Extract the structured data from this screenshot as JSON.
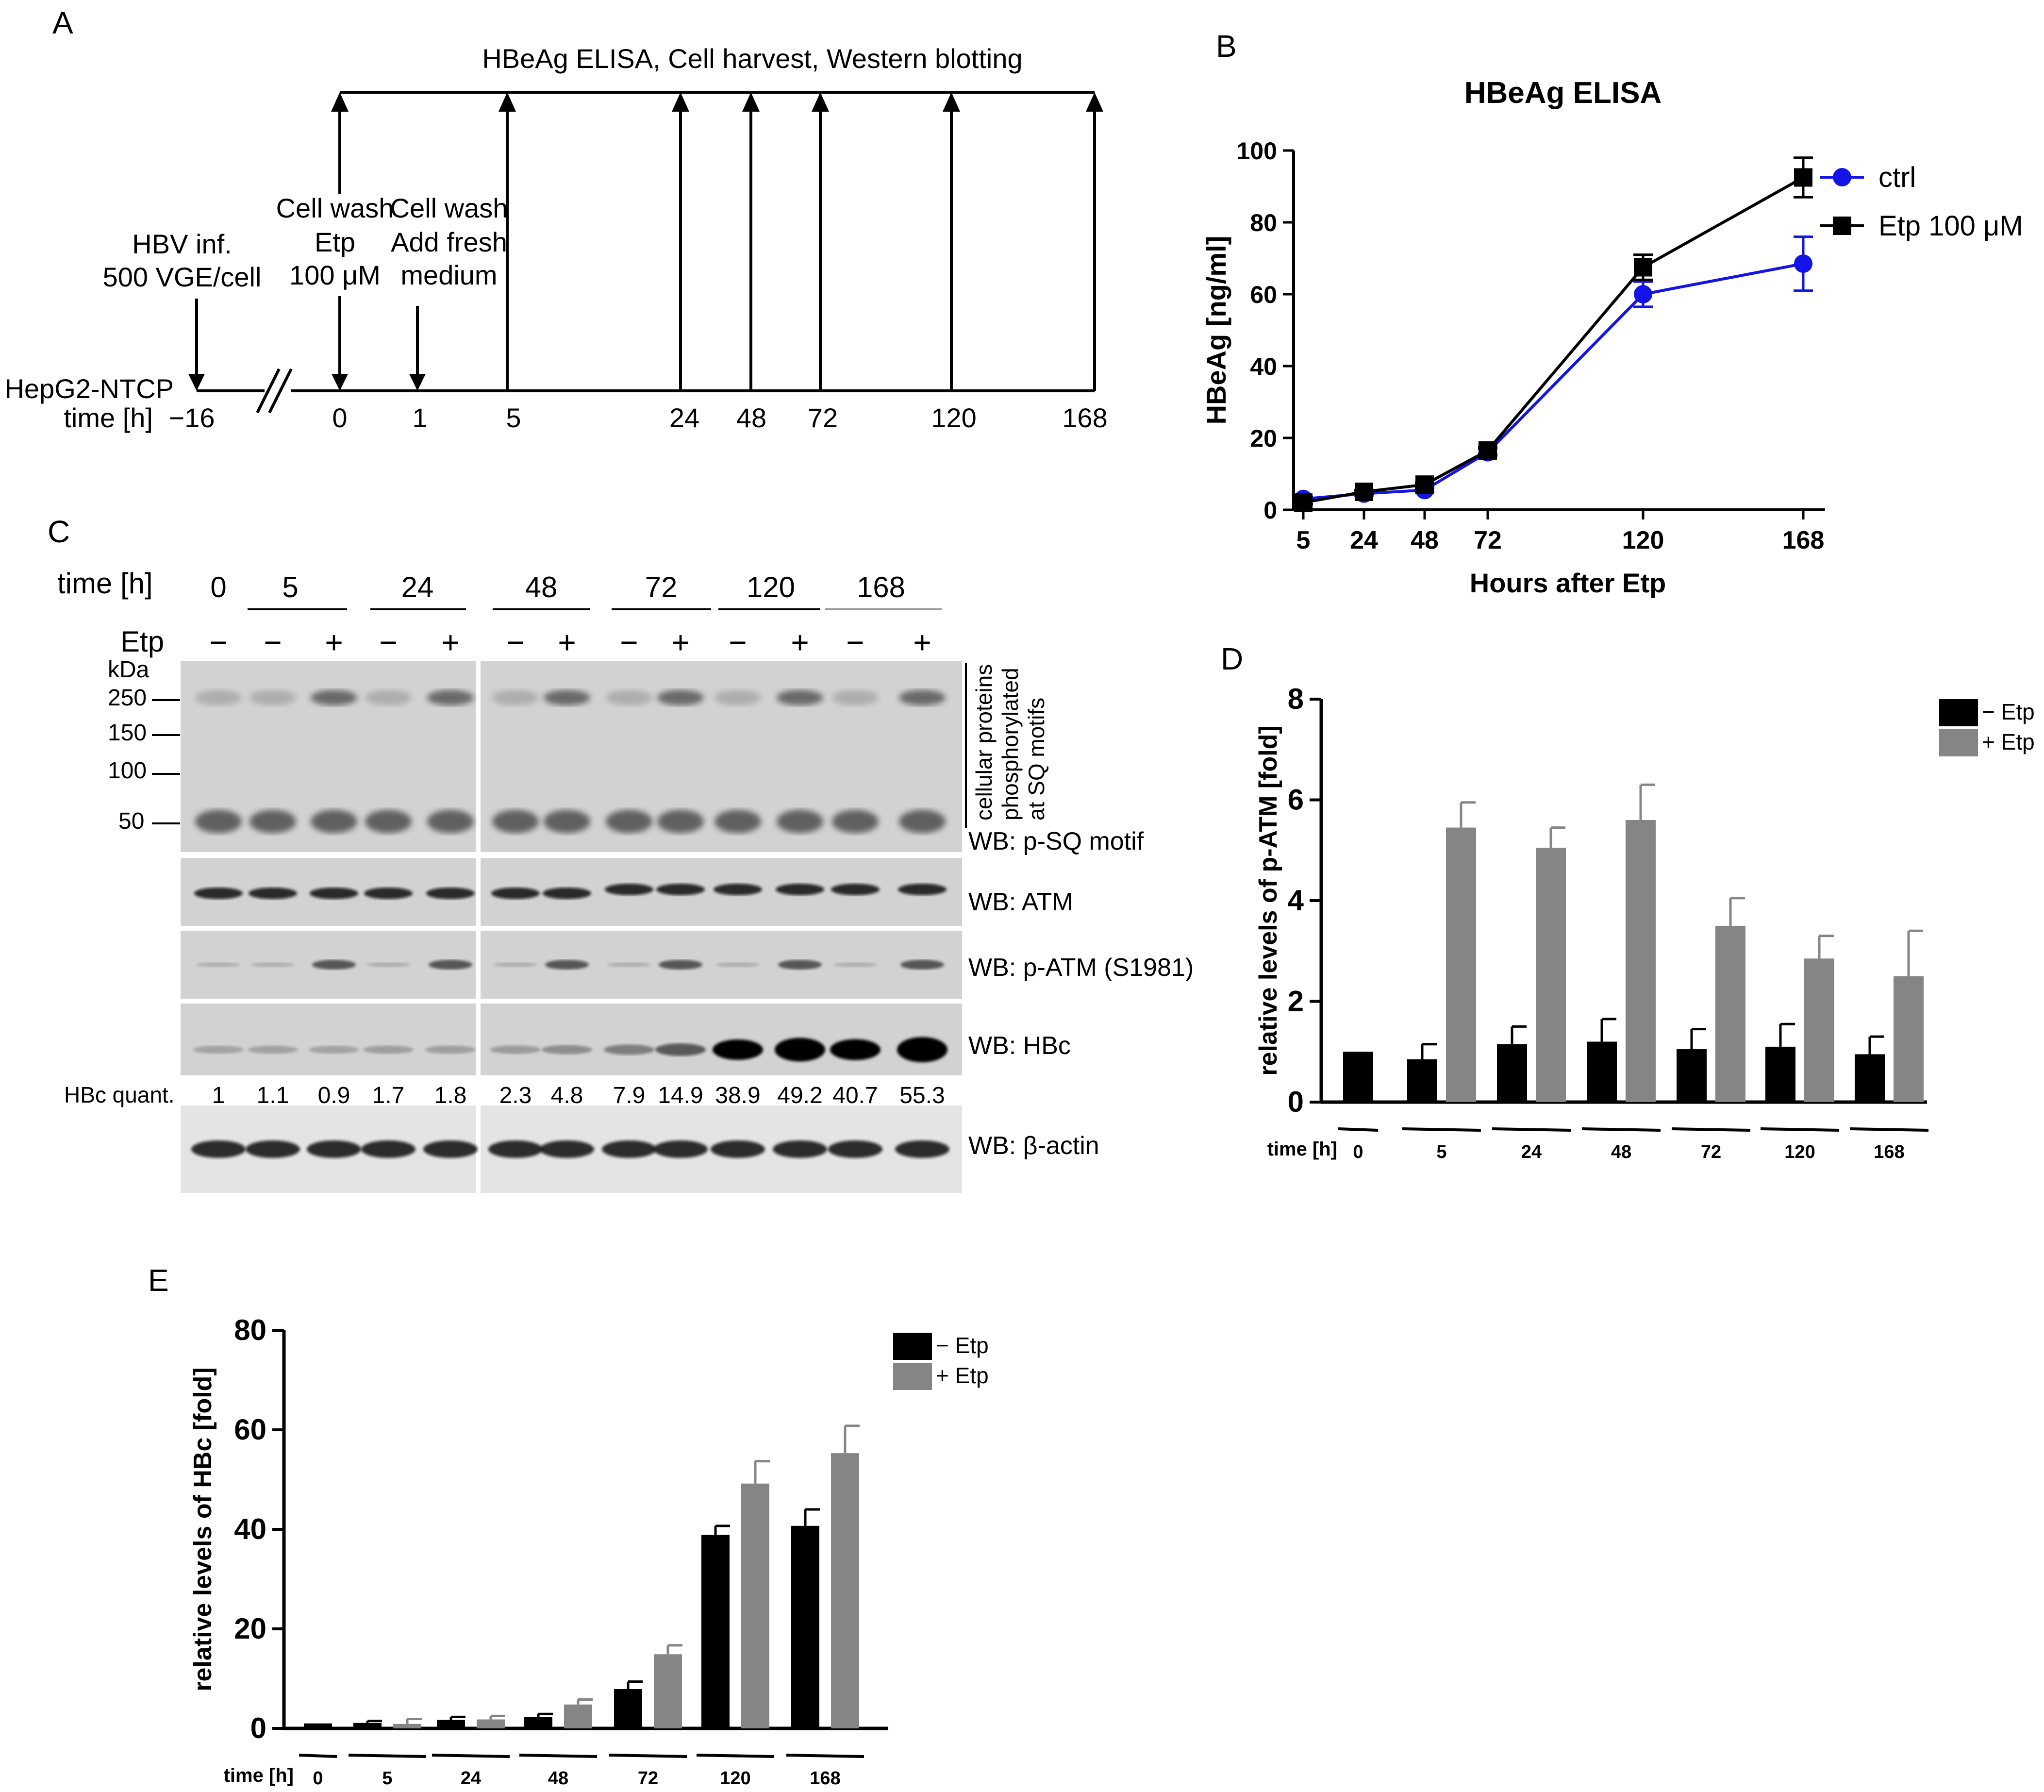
{
  "panelA": {
    "label": "A",
    "header": "HBeAg ELISA, Cell harvest, Western blotting",
    "cell_line": "HepG2-NTCP",
    "time_label": "time [h]",
    "events": {
      "infection": [
        "HBV inf.",
        "500 VGE/cell"
      ],
      "etp": [
        "Cell wash",
        "Etp",
        "100 μM"
      ],
      "wash": [
        "Cell wash",
        "Add fresh",
        "medium"
      ]
    },
    "times": [
      "−16",
      "0",
      "1",
      "5",
      "24",
      "48",
      "72",
      "120",
      "168"
    ]
  },
  "panelB": {
    "label": "B"
  },
  "panelC": {
    "label": "C",
    "time_label": "time [h]",
    "etp_label": "Etp",
    "time_groups": [
      "0",
      "5",
      "24",
      "48",
      "72",
      "120",
      "168"
    ],
    "etp_signs": [
      "−",
      "−",
      "+",
      "−",
      "+",
      "−",
      "+",
      "−",
      "+",
      "−",
      "+",
      "−",
      "+"
    ],
    "kda_label": "kDa",
    "markers": [
      "250",
      "150",
      "100",
      "50"
    ],
    "side_note": [
      "cellular proteins",
      "phosphorylated",
      "at SQ motifs"
    ],
    "wb_labels": [
      "WB: p-SQ motif",
      "WB: ATM",
      "WB: p-ATM (S1981)",
      "WB: HBc",
      "WB: β-actin"
    ],
    "hbc_quant_label": "HBc quant.",
    "hbc_quant": [
      "1",
      "1.1",
      "0.9",
      "1.7",
      "1.8",
      "2.3",
      "4.8",
      "7.9",
      "14.9",
      "38.9",
      "49.2",
      "40.7",
      "55.3"
    ]
  },
  "panelD": {
    "label": "D"
  },
  "panelE": {
    "label": "E"
  },
  "chart_data": [
    {
      "id": "B",
      "type": "line",
      "title": "HBeAg ELISA",
      "xlabel": "Hours after Etp",
      "ylabel": "HBeAg [ng/ml]",
      "x": [
        5,
        24,
        48,
        72,
        120,
        168
      ],
      "x_tick_labels": [
        "5",
        "24",
        "48",
        "72",
        "120",
        "168"
      ],
      "y_ticks": [
        "0",
        "20",
        "40",
        "60",
        "80",
        "100"
      ],
      "ylim": [
        0,
        100
      ],
      "series": [
        {
          "name": "ctrl",
          "color": "#1414e6",
          "marker": "circle",
          "values": [
            3,
            4.5,
            5.5,
            16,
            60,
            68.5
          ],
          "errors": [
            0.5,
            0.5,
            0.5,
            1,
            3.5,
            7.5
          ]
        },
        {
          "name": "Etp 100 μM",
          "color": "#000000",
          "marker": "square",
          "values": [
            2,
            5,
            7,
            16.5,
            67.5,
            92.5
          ],
          "errors": [
            0.5,
            0.5,
            0.5,
            1,
            3.5,
            5.5
          ]
        }
      ]
    },
    {
      "id": "D",
      "type": "bar",
      "ylabel": "relative levels of p-ATM [fold]",
      "x_title": "time [h]",
      "groups": [
        "0",
        "5",
        "24",
        "48",
        "72",
        "120",
        "168"
      ],
      "y_ticks": [
        "0",
        "2",
        "4",
        "6",
        "8"
      ],
      "ylim": [
        0,
        8
      ],
      "series": [
        {
          "name": "− Etp",
          "color": "#000000",
          "values": [
            1,
            0.85,
            1.15,
            1.2,
            1.05,
            1.1,
            0.95
          ],
          "errors": [
            0,
            0.3,
            0.35,
            0.45,
            0.4,
            0.45,
            0.35
          ]
        },
        {
          "name": "+ Etp",
          "color": "#858585",
          "values": [
            null,
            5.45,
            5.05,
            5.6,
            3.5,
            2.85,
            2.5
          ],
          "errors": [
            null,
            0.5,
            0.4,
            0.7,
            0.55,
            0.45,
            0.9
          ]
        }
      ]
    },
    {
      "id": "E",
      "type": "bar",
      "ylabel": "relative levels of HBc [fold]",
      "x_title": "time [h]",
      "groups": [
        "0",
        "5",
        "24",
        "48",
        "72",
        "120",
        "168"
      ],
      "y_ticks": [
        "0",
        "20",
        "40",
        "60",
        "80"
      ],
      "ylim": [
        0,
        80
      ],
      "series": [
        {
          "name": "− Etp",
          "color": "#000000",
          "values": [
            1,
            1.1,
            1.7,
            2.3,
            7.9,
            38.9,
            40.7
          ],
          "errors": [
            0,
            0.4,
            0.6,
            0.6,
            1.5,
            1.8,
            3.3
          ]
        },
        {
          "name": "+ Etp",
          "color": "#858585",
          "values": [
            null,
            0.9,
            1.8,
            4.8,
            14.9,
            49.2,
            55.3
          ],
          "errors": [
            null,
            1,
            0.7,
            1,
            1.8,
            4.5,
            5.5
          ]
        }
      ]
    }
  ]
}
